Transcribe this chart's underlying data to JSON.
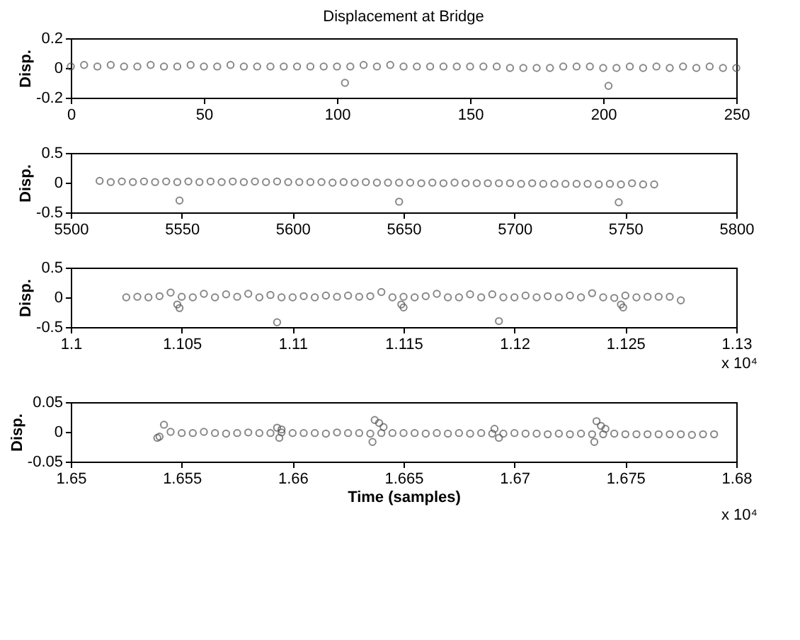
{
  "chart_data": [
    {
      "type": "scatter",
      "title": "Displacement at Bridge",
      "ylabel": "Disp.",
      "color": "#555555",
      "marker": "circle",
      "grid": false,
      "xlim": [
        0,
        250
      ],
      "xticks": [
        0,
        50,
        100,
        150,
        200,
        250
      ],
      "ylim": [
        -0.2,
        0.2
      ],
      "yticks": [
        -0.2,
        0,
        0.2
      ],
      "x": [
        0,
        5,
        10,
        15,
        20,
        25,
        30,
        35,
        40,
        45,
        50,
        55,
        60,
        65,
        70,
        75,
        80,
        85,
        90,
        95,
        100,
        105,
        110,
        115,
        120,
        125,
        130,
        135,
        140,
        145,
        150,
        155,
        160,
        165,
        170,
        175,
        180,
        185,
        190,
        195,
        200,
        205,
        210,
        215,
        220,
        225,
        230,
        235,
        240,
        245,
        250,
        103,
        202
      ],
      "values": [
        0.01,
        0.02,
        0.01,
        0.02,
        0.01,
        0.01,
        0.02,
        0.01,
        0.01,
        0.02,
        0.01,
        0.01,
        0.02,
        0.01,
        0.01,
        0.01,
        0.01,
        0.01,
        0.01,
        0.01,
        0.01,
        0.01,
        0.02,
        0.01,
        0.02,
        0.01,
        0.01,
        0.01,
        0.01,
        0.01,
        0.01,
        0.01,
        0.01,
        0,
        0,
        0,
        0,
        0.01,
        0.01,
        0.01,
        0,
        0,
        0.01,
        0,
        0.01,
        0,
        0.01,
        0,
        0.01,
        0,
        0,
        -0.1,
        -0.12
      ]
    },
    {
      "type": "scatter",
      "ylabel": "Disp.",
      "color": "#555555",
      "marker": "circle",
      "grid": false,
      "xlim": [
        5500,
        5800
      ],
      "xticks": [
        5500,
        5550,
        5600,
        5650,
        5700,
        5750,
        5800
      ],
      "ylim": [
        -0.5,
        0.5
      ],
      "yticks": [
        -0.5,
        0,
        0.5
      ],
      "x": [
        5513,
        5518,
        5523,
        5528,
        5533,
        5538,
        5543,
        5548,
        5553,
        5558,
        5563,
        5568,
        5573,
        5578,
        5583,
        5588,
        5593,
        5598,
        5603,
        5608,
        5613,
        5618,
        5623,
        5628,
        5633,
        5638,
        5643,
        5648,
        5653,
        5658,
        5663,
        5668,
        5673,
        5678,
        5683,
        5688,
        5693,
        5698,
        5703,
        5708,
        5713,
        5718,
        5723,
        5728,
        5733,
        5738,
        5743,
        5748,
        5753,
        5758,
        5763,
        5549,
        5648,
        5747
      ],
      "values": [
        0.03,
        0.01,
        0.02,
        0.01,
        0.02,
        0.01,
        0.02,
        0.01,
        0.02,
        0.01,
        0.02,
        0.01,
        0.02,
        0.01,
        0.02,
        0.01,
        0.02,
        0.01,
        0.01,
        0.01,
        0.01,
        0,
        0.01,
        0,
        0.01,
        0,
        0,
        0,
        0,
        -0.01,
        0,
        -0.01,
        0,
        -0.01,
        -0.01,
        -0.01,
        -0.01,
        -0.01,
        -0.02,
        -0.01,
        -0.02,
        -0.02,
        -0.02,
        -0.02,
        -0.02,
        -0.03,
        -0.02,
        -0.03,
        -0.01,
        -0.03,
        -0.03,
        -0.3,
        -0.32,
        -0.33
      ]
    },
    {
      "type": "scatter",
      "ylabel": "Disp.",
      "color": "#555555",
      "marker": "circle",
      "grid": false,
      "annotations": [
        "x 10⁴"
      ],
      "xlim": [
        1.1,
        1.13
      ],
      "xticks": [
        1.1,
        1.105,
        1.11,
        1.115,
        1.12,
        1.125,
        1.13
      ],
      "ylim": [
        -0.5,
        0.5
      ],
      "yticks": [
        -0.5,
        0,
        0.5
      ],
      "x": [
        1.1025,
        1.103,
        1.1035,
        1.104,
        1.1045,
        1.105,
        1.1055,
        1.106,
        1.1065,
        1.107,
        1.1075,
        1.108,
        1.1085,
        1.109,
        1.1095,
        1.11,
        1.1105,
        1.111,
        1.1115,
        1.112,
        1.1125,
        1.113,
        1.1135,
        1.114,
        1.1145,
        1.115,
        1.1155,
        1.116,
        1.1165,
        1.117,
        1.1175,
        1.118,
        1.1185,
        1.119,
        1.1195,
        1.12,
        1.1205,
        1.121,
        1.1215,
        1.122,
        1.1225,
        1.123,
        1.1235,
        1.124,
        1.1245,
        1.125,
        1.1255,
        1.126,
        1.1265,
        1.127,
        1.1275,
        1.1048,
        1.1049,
        1.1093,
        1.1149,
        1.115,
        1.1193,
        1.1248,
        1.1249
      ],
      "values": [
        0,
        0.01,
        0,
        0.02,
        0.08,
        0.01,
        0,
        0.06,
        0,
        0.05,
        0.01,
        0.06,
        0,
        0.04,
        0,
        0,
        0.02,
        0,
        0.03,
        0.01,
        0.03,
        0.01,
        0.02,
        0.09,
        0,
        0.01,
        0,
        0.02,
        0.06,
        0,
        0,
        0.05,
        0,
        0.05,
        0,
        0,
        0.03,
        0,
        0.02,
        0,
        0.03,
        0,
        0.07,
        0,
        -0.01,
        0.03,
        0,
        0.01,
        0.01,
        0.01,
        -0.05,
        -0.12,
        -0.18,
        -0.42,
        -0.12,
        -0.17,
        -0.4,
        -0.12,
        -0.17
      ]
    },
    {
      "type": "scatter",
      "ylabel": "Disp.",
      "xlabel": "Time (samples)",
      "color": "#555555",
      "marker": "circle",
      "grid": false,
      "annotations": [
        "x 10⁴"
      ],
      "xlim": [
        1.65,
        1.68
      ],
      "xticks": [
        1.65,
        1.655,
        1.66,
        1.665,
        1.67,
        1.675,
        1.68
      ],
      "ylim": [
        -0.05,
        0.05
      ],
      "yticks": [
        -0.05,
        0,
        0.05
      ],
      "x": [
        1.654,
        1.6545,
        1.655,
        1.6555,
        1.656,
        1.6565,
        1.657,
        1.6575,
        1.658,
        1.6585,
        1.659,
        1.6595,
        1.66,
        1.6605,
        1.661,
        1.6615,
        1.662,
        1.6625,
        1.663,
        1.6635,
        1.664,
        1.6645,
        1.665,
        1.6655,
        1.666,
        1.6665,
        1.667,
        1.6675,
        1.668,
        1.6685,
        1.669,
        1.6695,
        1.67,
        1.6705,
        1.671,
        1.6715,
        1.672,
        1.6725,
        1.673,
        1.6735,
        1.674,
        1.6745,
        1.675,
        1.6755,
        1.676,
        1.6765,
        1.677,
        1.6775,
        1.678,
        1.6785,
        1.679,
        1.6542,
        1.6539,
        1.6593,
        1.6595,
        1.6594,
        1.6637,
        1.6639,
        1.6641,
        1.6636,
        1.6691,
        1.6693,
        1.6737,
        1.6739,
        1.6741,
        1.6736
      ],
      "values": [
        -0.008,
        0,
        -0.002,
        -0.002,
        0,
        -0.002,
        -0.003,
        -0.002,
        -0.001,
        -0.002,
        -0.002,
        -0.001,
        -0.002,
        -0.002,
        -0.002,
        -0.003,
        -0.001,
        -0.002,
        -0.002,
        -0.003,
        -0.002,
        -0.002,
        -0.002,
        -0.002,
        -0.003,
        -0.002,
        -0.003,
        -0.002,
        -0.003,
        -0.002,
        -0.003,
        -0.003,
        -0.002,
        -0.003,
        -0.003,
        -0.004,
        -0.003,
        -0.004,
        -0.003,
        -0.004,
        -0.004,
        -0.003,
        -0.004,
        -0.004,
        -0.004,
        -0.004,
        -0.004,
        -0.004,
        -0.005,
        -0.004,
        -0.004,
        0.012,
        -0.01,
        0.007,
        0.004,
        -0.01,
        0.02,
        0.015,
        0.008,
        -0.017,
        0.005,
        -0.01,
        0.018,
        0.01,
        0.005,
        -0.017
      ]
    }
  ]
}
